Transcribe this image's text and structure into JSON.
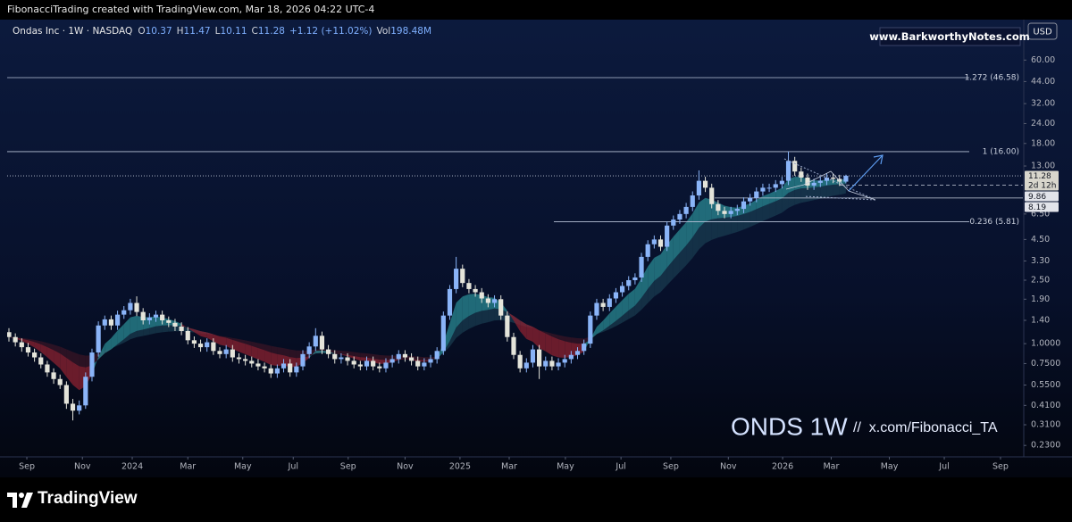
{
  "header": {
    "text": "FibonacciTrading created with TradingView.com, Mar 18, 2026 04:22 UTC-4"
  },
  "chart_data": {
    "type": "candlestick",
    "title": "Ondas Inc · 1W · NASDAQ",
    "legend_items": [
      {
        "label": "O",
        "value": 10.37
      },
      {
        "label": "H",
        "value": 11.47
      },
      {
        "label": "L",
        "value": 10.11
      },
      {
        "label": "C",
        "value": 11.28
      }
    ],
    "change": "+1.12 (+11.02%)",
    "volume": {
      "label": "Vol",
      "value": "198.48M"
    },
    "log_scale": true,
    "up_color": "#8ab4f8",
    "down_color": "#e4e4da",
    "open": [
      1.18,
      1.1,
      1.02,
      0.95,
      0.88,
      0.82,
      0.74,
      0.66,
      0.6,
      0.55,
      0.42,
      0.38,
      0.41,
      0.62,
      0.88,
      1.3,
      1.42,
      1.3,
      1.52,
      1.62,
      1.8,
      1.58,
      1.4,
      1.46,
      1.52,
      1.4,
      1.35,
      1.28,
      1.2,
      1.05,
      1.0,
      0.95,
      1.02,
      0.9,
      0.86,
      0.92,
      0.82,
      0.8,
      0.78,
      0.75,
      0.72,
      0.7,
      0.65,
      0.7,
      0.75,
      0.66,
      0.72,
      0.86,
      0.96,
      1.12,
      0.92,
      0.86,
      0.8,
      0.82,
      0.78,
      0.74,
      0.72,
      0.78,
      0.72,
      0.7,
      0.76,
      0.8,
      0.86,
      0.82,
      0.78,
      0.72,
      0.76,
      0.8,
      0.9,
      1.5,
      2.2,
      2.95,
      2.4,
      2.2,
      2.1,
      1.92,
      1.8,
      1.9,
      1.5,
      1.1,
      0.85,
      0.7,
      0.76,
      0.92,
      0.72,
      0.78,
      0.72,
      0.76,
      0.8,
      0.85,
      0.9,
      1.0,
      1.5,
      1.8,
      1.7,
      1.92,
      2.1,
      2.3,
      2.5,
      2.6,
      3.5,
      4.2,
      4.5,
      4.05,
      5.5,
      6.0,
      6.5,
      7.2,
      8.5,
      10.5,
      9.5,
      7.5,
      6.8,
      6.5,
      6.8,
      7.0,
      7.8,
      8.2,
      9.0,
      9.5,
      9.5,
      10.0,
      10.5,
      14.0,
      12.0,
      11.0,
      9.8,
      10.2,
      10.5,
      11.0,
      10.8,
      10.37
    ],
    "high": [
      1.25,
      1.16,
      1.08,
      1.01,
      0.93,
      0.87,
      0.78,
      0.7,
      0.64,
      0.58,
      0.45,
      0.44,
      0.66,
      0.93,
      1.38,
      1.5,
      1.5,
      1.61,
      1.72,
      1.91,
      1.98,
      1.67,
      1.55,
      1.61,
      1.61,
      1.48,
      1.43,
      1.36,
      1.27,
      1.11,
      1.06,
      1.08,
      1.08,
      0.95,
      0.98,
      0.98,
      0.87,
      0.85,
      0.83,
      0.8,
      0.76,
      0.74,
      0.74,
      0.8,
      0.8,
      0.76,
      0.91,
      1.02,
      1.25,
      1.19,
      0.98,
      0.91,
      0.87,
      0.87,
      0.83,
      0.78,
      0.83,
      0.83,
      0.76,
      0.81,
      0.85,
      0.91,
      0.91,
      0.87,
      0.83,
      0.81,
      0.85,
      0.95,
      1.59,
      2.33,
      3.5,
      3.13,
      2.54,
      2.33,
      2.23,
      2.04,
      2.01,
      2.01,
      1.59,
      1.17,
      0.9,
      0.81,
      0.98,
      0.98,
      0.83,
      0.83,
      0.81,
      0.85,
      0.9,
      0.95,
      1.06,
      1.59,
      1.91,
      1.91,
      2.04,
      2.23,
      2.44,
      2.65,
      2.76,
      3.71,
      4.45,
      4.77,
      4.77,
      5.83,
      6.36,
      6.89,
      7.63,
      9.01,
      12.2,
      11.13,
      10.07,
      7.95,
      7.21,
      7.21,
      7.42,
      8.27,
      8.69,
      9.54,
      10.07,
      10.07,
      10.6,
      11.13,
      16.0,
      14.84,
      12.72,
      11.66,
      10.81,
      11.13,
      11.66,
      11.66,
      11.45,
      11.47
    ],
    "low": [
      1.03,
      0.96,
      0.89,
      0.83,
      0.77,
      0.7,
      0.62,
      0.56,
      0.52,
      0.39,
      0.33,
      0.36,
      0.39,
      0.58,
      0.83,
      1.22,
      1.22,
      1.22,
      1.43,
      1.52,
      1.49,
      1.32,
      1.32,
      1.37,
      1.32,
      1.27,
      1.2,
      1.13,
      0.99,
      0.94,
      0.89,
      0.89,
      0.85,
      0.81,
      0.81,
      0.77,
      0.75,
      0.73,
      0.71,
      0.68,
      0.66,
      0.61,
      0.61,
      0.66,
      0.62,
      0.62,
      0.68,
      0.81,
      0.9,
      0.86,
      0.81,
      0.75,
      0.75,
      0.73,
      0.7,
      0.68,
      0.68,
      0.68,
      0.66,
      0.66,
      0.71,
      0.75,
      0.77,
      0.73,
      0.68,
      0.68,
      0.71,
      0.75,
      0.85,
      1.41,
      2.07,
      2.26,
      2.07,
      1.97,
      1.8,
      1.69,
      1.69,
      1.41,
      1.03,
      0.8,
      0.66,
      0.66,
      0.71,
      0.6,
      0.68,
      0.68,
      0.68,
      0.71,
      0.75,
      0.8,
      0.85,
      0.94,
      1.41,
      1.6,
      1.6,
      1.8,
      1.97,
      2.16,
      2.35,
      2.44,
      3.29,
      3.95,
      3.81,
      3.81,
      5.17,
      5.64,
      6.11,
      6.77,
      7.99,
      8.93,
      7.05,
      6.39,
      6.11,
      6.11,
      6.39,
      6.58,
      7.33,
      7.71,
      8.46,
      8.93,
      8.93,
      9.4,
      9.87,
      11.28,
      10.34,
      9.21,
      9.21,
      9.59,
      9.87,
      10.15,
      9.75,
      10.11
    ],
    "close": [
      1.1,
      1.02,
      0.95,
      0.88,
      0.82,
      0.74,
      0.66,
      0.6,
      0.55,
      0.42,
      0.38,
      0.41,
      0.62,
      0.88,
      1.3,
      1.42,
      1.3,
      1.52,
      1.62,
      1.8,
      1.58,
      1.4,
      1.46,
      1.52,
      1.4,
      1.35,
      1.28,
      1.2,
      1.05,
      1.0,
      0.95,
      1.02,
      0.9,
      0.86,
      0.92,
      0.82,
      0.8,
      0.78,
      0.75,
      0.72,
      0.7,
      0.65,
      0.7,
      0.75,
      0.66,
      0.72,
      0.86,
      0.96,
      1.12,
      0.92,
      0.86,
      0.8,
      0.82,
      0.78,
      0.74,
      0.72,
      0.78,
      0.72,
      0.7,
      0.76,
      0.8,
      0.86,
      0.82,
      0.78,
      0.72,
      0.76,
      0.8,
      0.9,
      1.5,
      2.2,
      2.95,
      2.4,
      2.2,
      2.1,
      1.92,
      1.8,
      1.9,
      1.5,
      1.1,
      0.85,
      0.7,
      0.76,
      0.92,
      0.72,
      0.78,
      0.72,
      0.76,
      0.8,
      0.85,
      0.9,
      1.0,
      1.5,
      1.8,
      1.7,
      1.92,
      2.1,
      2.3,
      2.5,
      2.6,
      3.5,
      4.2,
      4.5,
      4.05,
      5.5,
      6.0,
      6.5,
      7.2,
      8.5,
      10.5,
      9.5,
      7.5,
      6.8,
      6.5,
      6.8,
      7.0,
      7.8,
      8.2,
      9.0,
      9.5,
      9.5,
      10.0,
      10.5,
      14.0,
      12.0,
      11.0,
      9.8,
      10.2,
      10.5,
      11.0,
      10.8,
      10.37,
      11.28
    ],
    "xlim": [
      -0.28,
      158.7
    ],
    "xticks": [
      {
        "value": 2.8,
        "label": "Sep"
      },
      {
        "value": 11.5,
        "label": "Nov"
      },
      {
        "value": 19.3,
        "label": "2024"
      },
      {
        "value": 28,
        "label": "Mar"
      },
      {
        "value": 36.6,
        "label": "May"
      },
      {
        "value": 44.5,
        "label": "Jul"
      },
      {
        "value": 53.1,
        "label": "Sep"
      },
      {
        "value": 62,
        "label": "Nov"
      },
      {
        "value": 70.6,
        "label": "2025"
      },
      {
        "value": 78.3,
        "label": "Mar"
      },
      {
        "value": 87.1,
        "label": "May"
      },
      {
        "value": 95.8,
        "label": "Jul"
      },
      {
        "value": 103.6,
        "label": "Sep"
      },
      {
        "value": 112.6,
        "label": "Nov"
      },
      {
        "value": 121.1,
        "label": "2026"
      },
      {
        "value": 128.7,
        "label": "Mar"
      },
      {
        "value": 137.8,
        "label": "May"
      },
      {
        "value": 146.4,
        "label": "Jul"
      },
      {
        "value": 155.2,
        "label": "Sep"
      }
    ],
    "ylim": [
      0.195,
      80
    ],
    "yticks": [
      {
        "value": 60,
        "label": "60.00"
      },
      {
        "value": 44,
        "label": "44.00"
      },
      {
        "value": 32,
        "label": "32.00"
      },
      {
        "value": 24,
        "label": "24.00"
      },
      {
        "value": 18,
        "label": "18.00"
      },
      {
        "value": 13,
        "label": "13.00"
      },
      {
        "value": 6.5,
        "label": "6.50"
      },
      {
        "value": 4.5,
        "label": "4.50"
      },
      {
        "value": 3.3,
        "label": "3.30"
      },
      {
        "value": 2.5,
        "label": "2.50"
      },
      {
        "value": 1.9,
        "label": "1.90"
      },
      {
        "value": 1.4,
        "label": "1.40"
      },
      {
        "value": 1,
        "label": "1.0000"
      },
      {
        "value": 0.75,
        "label": "0.7500"
      },
      {
        "value": 0.55,
        "label": "0.5500"
      },
      {
        "value": 0.41,
        "label": "0.4100"
      },
      {
        "value": 0.31,
        "label": "0.3100"
      },
      {
        "value": 0.23,
        "label": "0.2300"
      }
    ],
    "levels": [
      {
        "label": "1.272 (46.58)",
        "value": 46.58
      },
      {
        "label": "1 (16.00)",
        "value": 16
      },
      {
        "label": "0.236 (5.81)",
        "value": 5.81
      }
    ],
    "price_tags": [
      {
        "label": "11.28",
        "value": 11.28,
        "timer": "2d 12h"
      },
      {
        "label": "9.86",
        "value": 9.86
      },
      {
        "label": "8.19",
        "value": 8.19
      }
    ],
    "currency": "USD",
    "watermark": "ONDS 1W",
    "handle": "//  x.com/Fibonacci_TA",
    "website": "www.BarkworthyNotes.com"
  },
  "footer": {
    "brand": "TradingView"
  }
}
